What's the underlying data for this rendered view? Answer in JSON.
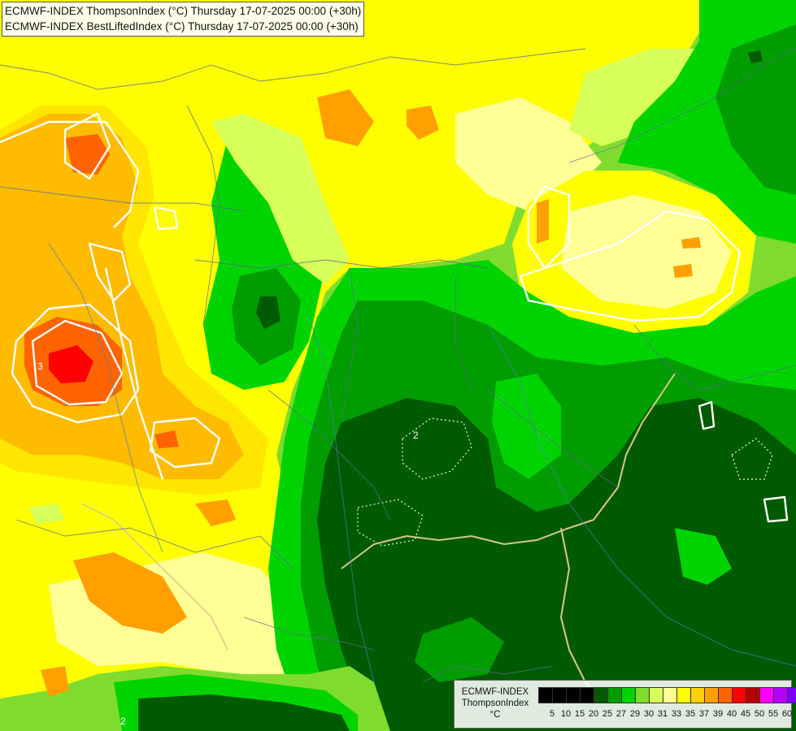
{
  "header": {
    "line1": "ECMWF-INDEX ThompsonIndex (°C) Thursday 17-07-2025 00:00 (+30h)",
    "line2": "ECMWF-INDEX BestLiftedIndex (°C) Thursday 17-07-2025 00:00 (+30h)"
  },
  "legend": {
    "model": "ECMWF-INDEX",
    "parameter": "ThompsonIndex",
    "unit": "°C",
    "colors": [
      "#000000",
      "#000000",
      "#000000",
      "#000000",
      "#005a00",
      "#009c00",
      "#00d400",
      "#7fdc2e",
      "#d7ff5a",
      "#ffff96",
      "#ffff00",
      "#ffd200",
      "#ffa000",
      "#ff6400",
      "#ff0000",
      "#b40000",
      "#ff00ff",
      "#b400ff",
      "#7d00ff",
      "#4600ff",
      "#0000ff"
    ],
    "ticks": [
      "5",
      "10",
      "15",
      "20",
      "25",
      "27",
      "29",
      "30",
      "31",
      "33",
      "35",
      "37",
      "39",
      "40",
      "45",
      "50",
      "55",
      "60"
    ]
  },
  "map_labels": [
    {
      "text": "2",
      "name": "contour-label-2-center"
    },
    {
      "text": "3",
      "name": "contour-label-3-west"
    },
    {
      "text": "2",
      "name": "contour-label-2-south"
    }
  ]
}
